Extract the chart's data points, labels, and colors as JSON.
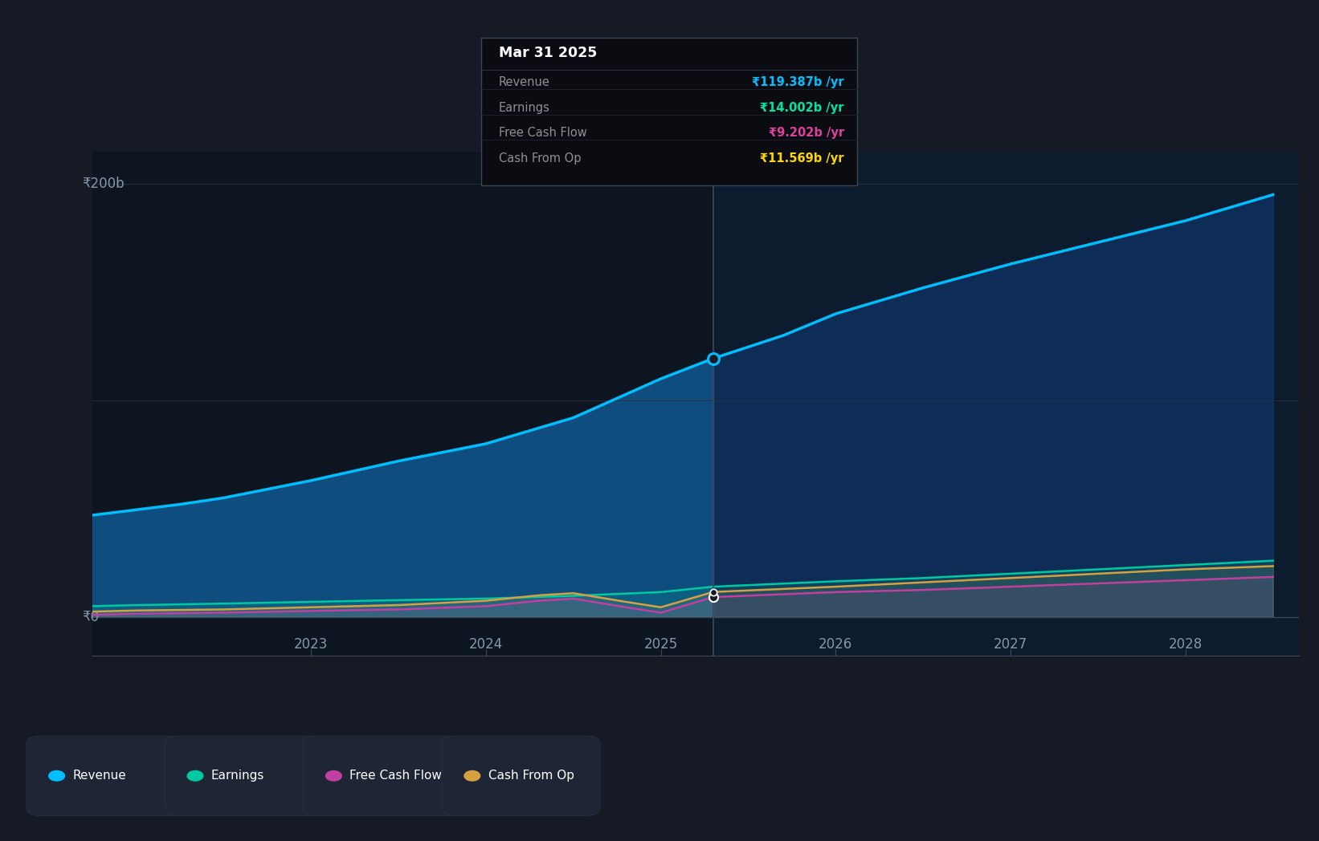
{
  "bg_color": "#151a25",
  "chart_bg_past": "#0d1520",
  "chart_bg_future": "#0d1b2e",
  "grid_color": "#2a3040",
  "axis_label_color": "#8896aa",
  "past_label_color": "#cccccc",
  "analysts_label_color": "#888888",
  "ylabel_text": "₹0",
  "ylabel_200": "₹200b",
  "divider_x": 2025.3,
  "tooltip_title": "Mar 31 2025",
  "tooltip_items": [
    {
      "label": "Revenue",
      "value": "₹119.387b /yr",
      "color": "#00bfff"
    },
    {
      "label": "Earnings",
      "value": "₹14.002b /yr",
      "color": "#00e5a0"
    },
    {
      "label": "Free Cash Flow",
      "value": "₹9.202b /yr",
      "color": "#e040a0"
    },
    {
      "label": "Cash From Op",
      "value": "₹11.569b /yr",
      "color": "#ffd700"
    }
  ],
  "revenue": {
    "x": [
      2021.75,
      2022.25,
      2022.5,
      2023.0,
      2023.5,
      2024.0,
      2024.5,
      2025.0,
      2025.3,
      2025.7,
      2026.0,
      2026.5,
      2027.0,
      2027.5,
      2028.0,
      2028.5
    ],
    "y": [
      47,
      52,
      55,
      63,
      72,
      80,
      92,
      110,
      119.387,
      130,
      140,
      152,
      163,
      173,
      183,
      195
    ],
    "color": "#00bfff",
    "linewidth": 2.5
  },
  "earnings": {
    "x": [
      2021.75,
      2022.0,
      2022.5,
      2023.0,
      2023.5,
      2024.0,
      2024.5,
      2025.0,
      2025.3,
      2026.0,
      2026.5,
      2027.0,
      2027.5,
      2028.0,
      2028.5
    ],
    "y": [
      5.0,
      5.5,
      6.2,
      7.0,
      7.8,
      8.5,
      9.8,
      11.5,
      14.002,
      16.5,
      18.0,
      20.0,
      22.0,
      24.0,
      26.0
    ],
    "color": "#00c8a0",
    "linewidth": 1.8
  },
  "free_cash_flow": {
    "x": [
      2021.75,
      2022.0,
      2022.5,
      2023.0,
      2023.5,
      2024.0,
      2024.3,
      2024.5,
      2024.8,
      2025.0,
      2025.3,
      2026.0,
      2026.5,
      2027.0,
      2027.5,
      2028.0,
      2028.5
    ],
    "y": [
      1.0,
      1.5,
      2.0,
      2.8,
      3.5,
      5.0,
      7.5,
      8.5,
      4.5,
      2.0,
      9.202,
      11.5,
      12.5,
      14.0,
      15.5,
      17.0,
      18.5
    ],
    "color": "#c040a0",
    "linewidth": 1.8
  },
  "cash_from_op": {
    "x": [
      2021.75,
      2022.0,
      2022.5,
      2023.0,
      2023.5,
      2024.0,
      2024.3,
      2024.5,
      2024.8,
      2025.0,
      2025.3,
      2026.0,
      2026.5,
      2027.0,
      2027.5,
      2028.0,
      2028.5
    ],
    "y": [
      2.5,
      3.0,
      3.5,
      4.5,
      5.5,
      7.5,
      10.0,
      11.0,
      7.0,
      4.5,
      11.569,
      14.0,
      16.0,
      18.0,
      20.0,
      22.0,
      23.5
    ],
    "color": "#d4a040",
    "linewidth": 1.8
  },
  "xlim": [
    2021.75,
    2028.65
  ],
  "ylim": [
    -18,
    215
  ],
  "legend": [
    {
      "label": "Revenue",
      "color": "#00bfff"
    },
    {
      "label": "Earnings",
      "color": "#00c8a0"
    },
    {
      "label": "Free Cash Flow",
      "color": "#c040a0"
    },
    {
      "label": "Cash From Op",
      "color": "#d4a040"
    }
  ]
}
